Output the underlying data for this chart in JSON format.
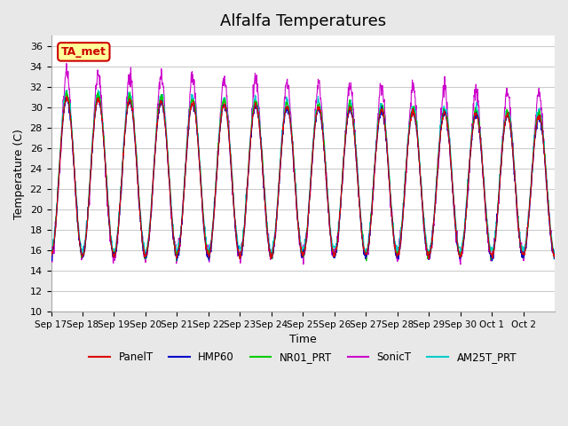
{
  "title": "Alfalfa Temperatures",
  "xlabel": "Time",
  "ylabel": "Temperature (C)",
  "ylim": [
    10,
    37
  ],
  "yticks": [
    10,
    12,
    14,
    16,
    18,
    20,
    22,
    24,
    26,
    28,
    30,
    32,
    34,
    36
  ],
  "x_labels": [
    "Sep 17",
    "Sep 18",
    "Sep 19",
    "Sep 20",
    "Sep 21",
    "Sep 22",
    "Sep 23",
    "Sep 24",
    "Sep 25",
    "Sep 26",
    "Sep 27",
    "Sep 28",
    "Sep 29",
    "Sep 30",
    "Oct 1",
    "Oct 2"
  ],
  "annotation_text": "TA_met",
  "annotation_color": "#cc0000",
  "annotation_box_color": "#ffff99",
  "colors": {
    "PanelT": "#dd0000",
    "HMP60": "#0000cc",
    "NR01_PRT": "#00cc00",
    "SonicT": "#cc00cc",
    "AM25T_PRT": "#00cccc"
  },
  "legend_labels": [
    "PanelT",
    "HMP60",
    "NR01_PRT",
    "SonicT",
    "AM25T_PRT"
  ],
  "background_color": "#e8e8e8",
  "plot_background": "#ffffff",
  "grid_color": "#cccccc",
  "title_fontsize": 13
}
